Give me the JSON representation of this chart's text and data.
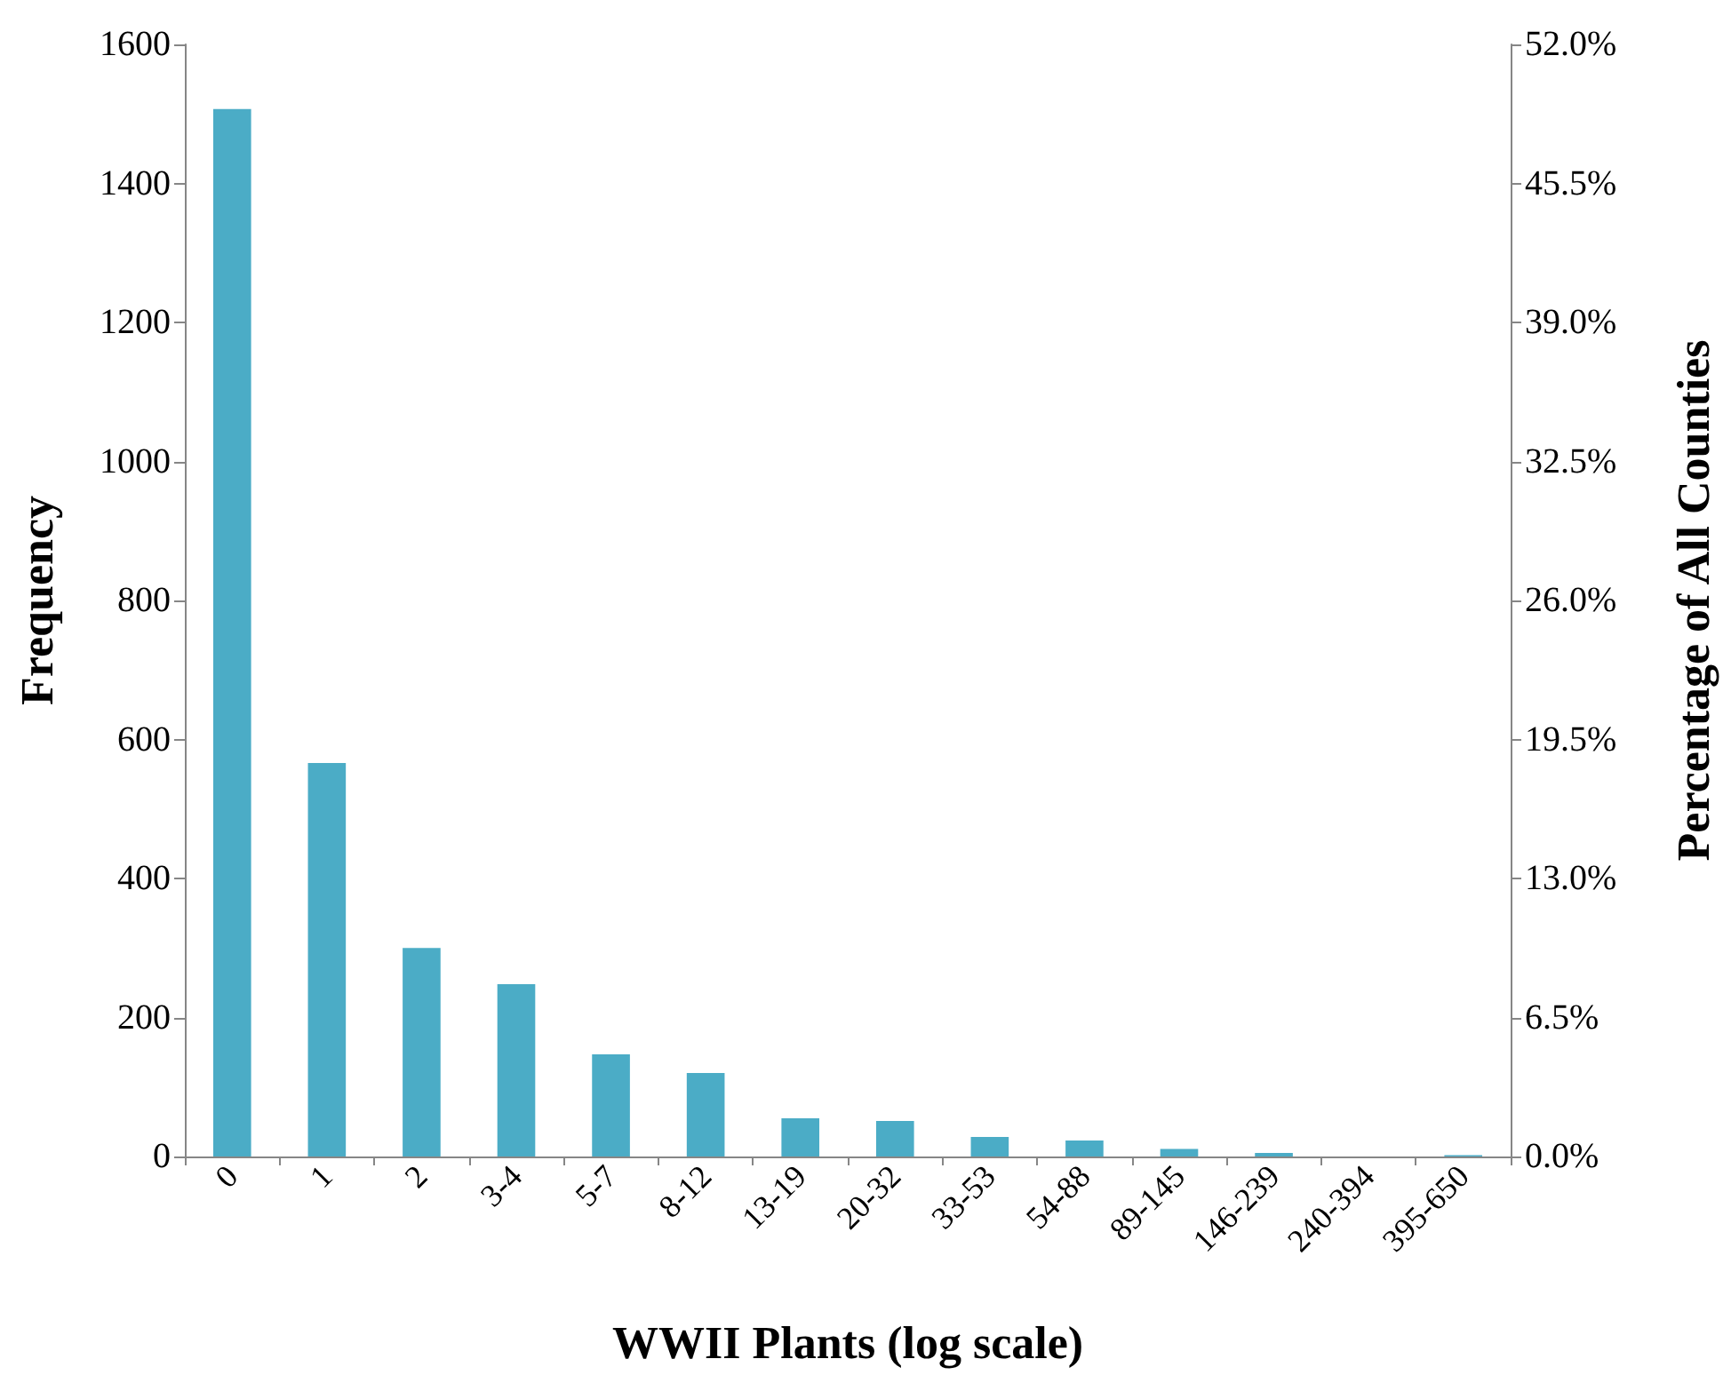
{
  "chart_data": {
    "type": "bar",
    "xlabel": "WWII Plants (log scale)",
    "ylabel": "Frequency",
    "y2label": "Percentage of All Counties",
    "categories": [
      "0",
      "1",
      "2",
      "3-4",
      "5-7",
      "8-12",
      "13-19",
      "20-32",
      "33-53",
      "54-88",
      "89-145",
      "146-239",
      "240-394",
      "395-650"
    ],
    "values": [
      1507,
      566,
      300,
      248,
      147,
      120,
      55,
      51,
      28,
      23,
      11,
      5,
      0,
      2
    ],
    "color": "#4bacc6",
    "ylim": [
      0,
      1600
    ],
    "yticks": [
      0,
      200,
      400,
      600,
      800,
      1000,
      1200,
      1400,
      1600
    ],
    "y2lim": [
      0,
      52
    ],
    "y2ticks": [
      {
        "value": 0,
        "label": "0.0%"
      },
      {
        "value": 6.5,
        "label": "6.5%"
      },
      {
        "value": 13,
        "label": "13.0%"
      },
      {
        "value": 19.5,
        "label": "19.5%"
      },
      {
        "value": 26,
        "label": "26.0%"
      },
      {
        "value": 32.5,
        "label": "32.5%"
      },
      {
        "value": 39,
        "label": "39.0%"
      },
      {
        "value": 45.5,
        "label": "45.5%"
      },
      {
        "value": 52,
        "label": "52.0%"
      }
    ],
    "grid": false
  }
}
